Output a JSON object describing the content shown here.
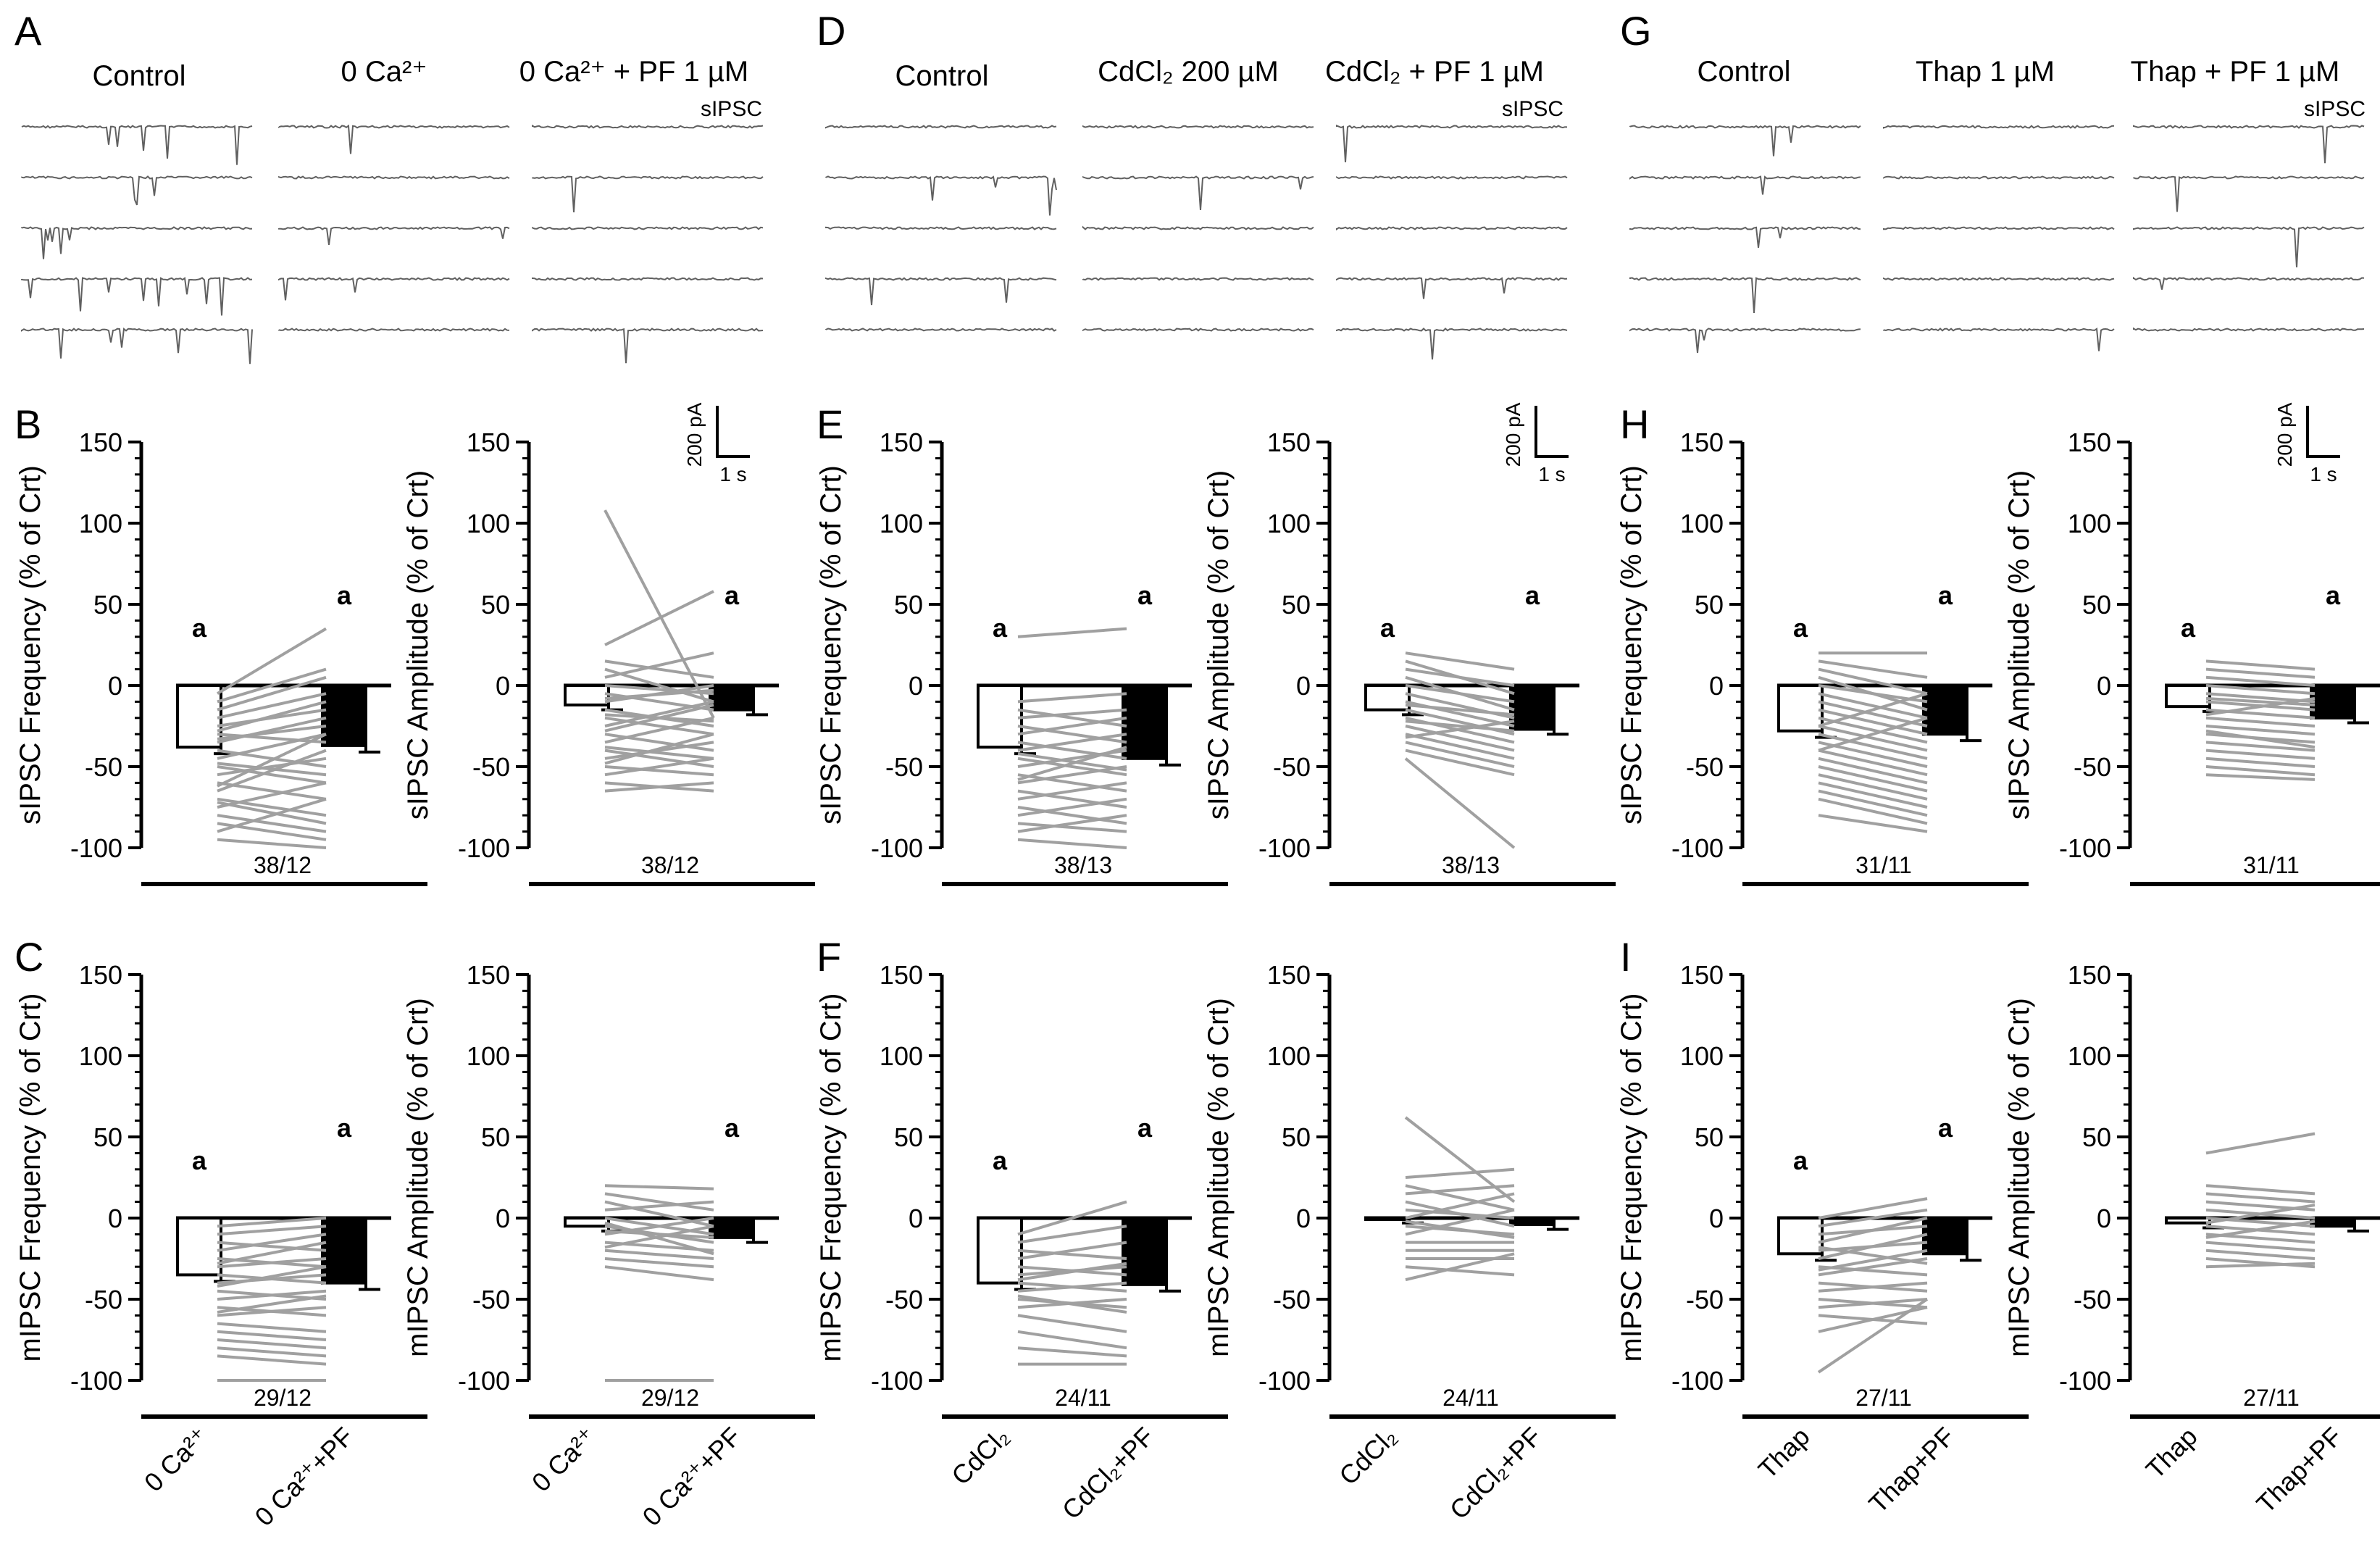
{
  "colors": {
    "axis": "#000000",
    "trace": "#606060",
    "paired_line": "#a0a0a0",
    "bar_first_fill": "#ffffff",
    "bar_second_fill": "#000000"
  },
  "panels_top": [
    {
      "letter": "A",
      "conditions": [
        "Control",
        "0 Ca²⁺",
        "0 Ca²⁺ + PF 1 µM"
      ],
      "trace_label": "sIPSC"
    },
    {
      "letter": "D",
      "conditions": [
        "Control",
        "CdCl₂ 200 µM",
        "CdCl₂ + PF 1 µM"
      ],
      "trace_label": "sIPSC"
    },
    {
      "letter": "G",
      "conditions": [
        "Control",
        "Thap 1 µM",
        "Thap + PF 1 µM"
      ],
      "trace_label": "sIPSC"
    }
  ],
  "scale_bar": {
    "amplitude_label": "200 pA",
    "time_label": "1 s"
  },
  "chart_data": [
    {
      "type": "bar",
      "panel": "B",
      "ylabel": "sIPSC Frequency (% of Crt)",
      "categories": [
        "0 Ca²⁺",
        "0 Ca²⁺+PF"
      ],
      "values": [
        -38,
        -37
      ],
      "sem": [
        4,
        4
      ],
      "significance": [
        "a",
        "a"
      ],
      "n_label": "38/12",
      "ylim": [
        -100,
        150
      ],
      "yticks": [
        -100,
        -50,
        0,
        50,
        100,
        150
      ],
      "paired": [
        [
          -5,
          35
        ],
        [
          -10,
          10
        ],
        [
          -15,
          5
        ],
        [
          -20,
          -5
        ],
        [
          -25,
          -15
        ],
        [
          -30,
          -35
        ],
        [
          -35,
          -20
        ],
        [
          -40,
          -50
        ],
        [
          -45,
          -30
        ],
        [
          -50,
          -60
        ],
        [
          -55,
          -45
        ],
        [
          -60,
          -70
        ],
        [
          -65,
          -40
        ],
        [
          -70,
          -80
        ],
        [
          -75,
          -60
        ],
        [
          -80,
          -90
        ],
        [
          -85,
          -95
        ],
        [
          -90,
          -70
        ],
        [
          -95,
          -100
        ],
        [
          -28,
          -10
        ],
        [
          -33,
          -25
        ],
        [
          -48,
          -55
        ],
        [
          -62,
          -30
        ],
        [
          -72,
          -85
        ]
      ]
    },
    {
      "type": "bar",
      "panel": "B",
      "ylabel": "sIPSC Amplitude (% of Crt)",
      "categories": [
        "0 Ca²⁺",
        "0 Ca²⁺+PF"
      ],
      "values": [
        -12,
        -15
      ],
      "sem": [
        3,
        3
      ],
      "significance": [
        "",
        "a"
      ],
      "n_label": "38/12",
      "ylim": [
        -100,
        150
      ],
      "yticks": [
        -100,
        -50,
        0,
        50,
        100,
        150
      ],
      "paired": [
        [
          108,
          -20
        ],
        [
          25,
          58
        ],
        [
          15,
          5
        ],
        [
          10,
          -10
        ],
        [
          5,
          20
        ],
        [
          0,
          -5
        ],
        [
          -5,
          -15
        ],
        [
          -10,
          0
        ],
        [
          -15,
          -25
        ],
        [
          -20,
          -30
        ],
        [
          -25,
          -10
        ],
        [
          -30,
          -40
        ],
        [
          -35,
          -20
        ],
        [
          -40,
          -50
        ],
        [
          -45,
          -35
        ],
        [
          -50,
          -55
        ],
        [
          -55,
          -45
        ],
        [
          -60,
          -65
        ],
        [
          -65,
          -60
        ],
        [
          -8,
          -3
        ],
        [
          -18,
          -22
        ],
        [
          -28,
          -12
        ],
        [
          -38,
          -45
        ],
        [
          -48,
          -30
        ]
      ]
    },
    {
      "type": "bar",
      "panel": "C",
      "ylabel": "mIPSC Frequency (% of Crt)",
      "categories": [
        "0 Ca²⁺",
        "0 Ca²⁺+PF"
      ],
      "values": [
        -35,
        -40
      ],
      "sem": [
        4,
        4
      ],
      "significance": [
        "a",
        "a"
      ],
      "n_label": "29/12",
      "ylim": [
        -100,
        150
      ],
      "yticks": [
        -100,
        -50,
        0,
        50,
        100,
        150
      ],
      "paired": [
        [
          -5,
          0
        ],
        [
          -10,
          -5
        ],
        [
          -15,
          -20
        ],
        [
          -20,
          -10
        ],
        [
          -25,
          -30
        ],
        [
          -30,
          -25
        ],
        [
          -35,
          -40
        ],
        [
          -40,
          -35
        ],
        [
          -45,
          -50
        ],
        [
          -50,
          -45
        ],
        [
          -55,
          -60
        ],
        [
          -60,
          -55
        ],
        [
          -65,
          -70
        ],
        [
          -70,
          -75
        ],
        [
          -75,
          -80
        ],
        [
          -80,
          -85
        ],
        [
          -85,
          -90
        ],
        [
          -100,
          -100
        ],
        [
          -28,
          -15
        ],
        [
          -42,
          -30
        ],
        [
          -58,
          -48
        ]
      ]
    },
    {
      "type": "bar",
      "panel": "C",
      "ylabel": "mIPSC Amplitude (% of Crt)",
      "categories": [
        "0 Ca²⁺",
        "0 Ca²⁺+PF"
      ],
      "values": [
        -5,
        -12
      ],
      "sem": [
        3,
        3
      ],
      "significance": [
        "",
        "a"
      ],
      "n_label": "29/12",
      "ylim": [
        -100,
        150
      ],
      "yticks": [
        -100,
        -50,
        0,
        50,
        100,
        150
      ],
      "paired": [
        [
          20,
          18
        ],
        [
          15,
          5
        ],
        [
          10,
          -5
        ],
        [
          5,
          10
        ],
        [
          0,
          -10
        ],
        [
          -5,
          -15
        ],
        [
          -10,
          0
        ],
        [
          -15,
          -20
        ],
        [
          -20,
          -25
        ],
        [
          -25,
          -30
        ],
        [
          -30,
          -38
        ],
        [
          -8,
          -12
        ],
        [
          -18,
          -5
        ],
        [
          -3,
          -22
        ],
        [
          -100,
          -100
        ]
      ]
    },
    {
      "type": "bar",
      "panel": "E",
      "ylabel": "sIPSC Frequency (% of Crt)",
      "categories": [
        "CdCl₂",
        "CdCl₂+PF"
      ],
      "values": [
        -38,
        -45
      ],
      "sem": [
        4,
        4
      ],
      "significance": [
        "a",
        "a"
      ],
      "n_label": "38/13",
      "ylim": [
        -100,
        150
      ],
      "yticks": [
        -100,
        -50,
        0,
        50,
        100,
        150
      ],
      "paired": [
        [
          30,
          35
        ],
        [
          -10,
          -5
        ],
        [
          -15,
          -25
        ],
        [
          -20,
          -15
        ],
        [
          -25,
          -35
        ],
        [
          -30,
          -20
        ],
        [
          -35,
          -45
        ],
        [
          -40,
          -30
        ],
        [
          -45,
          -55
        ],
        [
          -50,
          -40
        ],
        [
          -55,
          -65
        ],
        [
          -60,
          -50
        ],
        [
          -65,
          -75
        ],
        [
          -70,
          -60
        ],
        [
          -75,
          -85
        ],
        [
          -80,
          -70
        ],
        [
          -85,
          -90
        ],
        [
          -90,
          -80
        ],
        [
          -95,
          -100
        ],
        [
          -42,
          -52
        ],
        [
          -58,
          -38
        ]
      ]
    },
    {
      "type": "bar",
      "panel": "E",
      "ylabel": "sIPSC Amplitude (% of Crt)",
      "categories": [
        "CdCl₂",
        "CdCl₂+PF"
      ],
      "values": [
        -15,
        -27
      ],
      "sem": [
        3,
        3
      ],
      "significance": [
        "a",
        "a"
      ],
      "n_label": "38/13",
      "ylim": [
        -100,
        150
      ],
      "yticks": [
        -100,
        -50,
        0,
        50,
        100,
        150
      ],
      "paired": [
        [
          20,
          10
        ],
        [
          15,
          -5
        ],
        [
          10,
          0
        ],
        [
          5,
          -15
        ],
        [
          0,
          -10
        ],
        [
          -5,
          -20
        ],
        [
          -10,
          -25
        ],
        [
          -15,
          -30
        ],
        [
          -20,
          -35
        ],
        [
          -25,
          -40
        ],
        [
          -30,
          -45
        ],
        [
          -35,
          -50
        ],
        [
          -40,
          -55
        ],
        [
          -45,
          -100
        ],
        [
          -12,
          -18
        ],
        [
          -22,
          -28
        ],
        [
          -32,
          -22
        ]
      ]
    },
    {
      "type": "bar",
      "panel": "F",
      "ylabel": "mIPSC Frequency (% of Crt)",
      "categories": [
        "CdCl₂",
        "CdCl₂+PF"
      ],
      "values": [
        -40,
        -41
      ],
      "sem": [
        4,
        4
      ],
      "significance": [
        "a",
        "a"
      ],
      "n_label": "24/11",
      "ylim": [
        -100,
        150
      ],
      "yticks": [
        -100,
        -50,
        0,
        50,
        100,
        150
      ],
      "paired": [
        [
          -10,
          10
        ],
        [
          -15,
          -5
        ],
        [
          -20,
          -25
        ],
        [
          -25,
          -15
        ],
        [
          -30,
          -35
        ],
        [
          -35,
          -30
        ],
        [
          -40,
          -45
        ],
        [
          -45,
          -40
        ],
        [
          -50,
          -55
        ],
        [
          -55,
          -50
        ],
        [
          -60,
          -70
        ],
        [
          -70,
          -80
        ],
        [
          -80,
          -85
        ],
        [
          -90,
          -90
        ],
        [
          -38,
          -28
        ],
        [
          -48,
          -58
        ]
      ]
    },
    {
      "type": "bar",
      "panel": "F",
      "ylabel": "mIPSC Amplitude (% of Crt)",
      "categories": [
        "CdCl₂",
        "CdCl₂+PF"
      ],
      "values": [
        0,
        -4
      ],
      "sem": [
        3,
        3
      ],
      "significance": [
        "",
        ""
      ],
      "n_label": "24/11",
      "ylim": [
        -100,
        150
      ],
      "yticks": [
        -100,
        -50,
        0,
        50,
        100,
        150
      ],
      "paired": [
        [
          62,
          10
        ],
        [
          25,
          30
        ],
        [
          20,
          5
        ],
        [
          15,
          20
        ],
        [
          10,
          -5
        ],
        [
          5,
          0
        ],
        [
          0,
          15
        ],
        [
          -5,
          -10
        ],
        [
          -10,
          5
        ],
        [
          -15,
          -15
        ],
        [
          -20,
          -20
        ],
        [
          -25,
          -25
        ],
        [
          -30,
          -35
        ],
        [
          -38,
          -22
        ],
        [
          -2,
          -12
        ]
      ]
    },
    {
      "type": "bar",
      "panel": "H",
      "ylabel": "sIPSC Frequency (% of Crt)",
      "categories": [
        "Thap",
        "Thap+PF"
      ],
      "values": [
        -28,
        -30
      ],
      "sem": [
        4,
        4
      ],
      "significance": [
        "a",
        "a"
      ],
      "n_label": "31/11",
      "ylim": [
        -100,
        150
      ],
      "yticks": [
        -100,
        -50,
        0,
        50,
        100,
        150
      ],
      "paired": [
        [
          20,
          20
        ],
        [
          15,
          5
        ],
        [
          10,
          -5
        ],
        [
          5,
          -15
        ],
        [
          0,
          -10
        ],
        [
          -5,
          -20
        ],
        [
          -10,
          -25
        ],
        [
          -15,
          -30
        ],
        [
          -20,
          -35
        ],
        [
          -25,
          -40
        ],
        [
          -30,
          -45
        ],
        [
          -35,
          -50
        ],
        [
          -40,
          -55
        ],
        [
          -45,
          -60
        ],
        [
          -50,
          -65
        ],
        [
          -55,
          -70
        ],
        [
          -60,
          -75
        ],
        [
          -65,
          -80
        ],
        [
          -70,
          -85
        ],
        [
          -80,
          -90
        ],
        [
          -25,
          -5
        ],
        [
          -40,
          -20
        ]
      ]
    },
    {
      "type": "bar",
      "panel": "H",
      "ylabel": "sIPSC Amplitude (% of Crt)",
      "categories": [
        "Thap",
        "Thap+PF"
      ],
      "values": [
        -13,
        -20
      ],
      "sem": [
        3,
        3
      ],
      "significance": [
        "a",
        "a"
      ],
      "n_label": "31/11",
      "ylim": [
        -100,
        150
      ],
      "yticks": [
        -100,
        -50,
        0,
        50,
        100,
        150
      ],
      "paired": [
        [
          15,
          10
        ],
        [
          10,
          5
        ],
        [
          5,
          0
        ],
        [
          0,
          -5
        ],
        [
          -5,
          -10
        ],
        [
          -10,
          -15
        ],
        [
          -15,
          -20
        ],
        [
          -20,
          -25
        ],
        [
          -25,
          -30
        ],
        [
          -30,
          -35
        ],
        [
          -35,
          -40
        ],
        [
          -40,
          -45
        ],
        [
          -45,
          -50
        ],
        [
          -50,
          -55
        ],
        [
          -55,
          -58
        ],
        [
          -8,
          -12
        ],
        [
          -18,
          -8
        ],
        [
          -28,
          -38
        ]
      ]
    },
    {
      "type": "bar",
      "panel": "I",
      "ylabel": "mIPSC Frequency (% of Crt)",
      "categories": [
        "Thap",
        "Thap+PF"
      ],
      "values": [
        -22,
        -22
      ],
      "sem": [
        4,
        4
      ],
      "significance": [
        "a",
        "a"
      ],
      "n_label": "27/11",
      "ylim": [
        -100,
        150
      ],
      "yticks": [
        -100,
        -50,
        0,
        50,
        100,
        150
      ],
      "paired": [
        [
          0,
          12
        ],
        [
          -5,
          5
        ],
        [
          -10,
          -5
        ],
        [
          -15,
          0
        ],
        [
          -20,
          -15
        ],
        [
          -25,
          -10
        ],
        [
          -30,
          -35
        ],
        [
          -35,
          -25
        ],
        [
          -40,
          -45
        ],
        [
          -45,
          -40
        ],
        [
          -50,
          -55
        ],
        [
          -55,
          -50
        ],
        [
          -60,
          -65
        ],
        [
          -70,
          -55
        ],
        [
          -95,
          -50
        ],
        [
          -18,
          -28
        ],
        [
          -32,
          -20
        ]
      ]
    },
    {
      "type": "bar",
      "panel": "I",
      "ylabel": "mIPSC Amplitude (% of Crt)",
      "categories": [
        "Thap",
        "Thap+PF"
      ],
      "values": [
        -3,
        -5
      ],
      "sem": [
        3,
        3
      ],
      "significance": [
        "",
        ""
      ],
      "n_label": "27/11",
      "ylim": [
        -100,
        150
      ],
      "yticks": [
        -100,
        -50,
        0,
        50,
        100,
        150
      ],
      "paired": [
        [
          40,
          52
        ],
        [
          20,
          15
        ],
        [
          15,
          10
        ],
        [
          10,
          5
        ],
        [
          5,
          0
        ],
        [
          0,
          -5
        ],
        [
          -5,
          -10
        ],
        [
          -10,
          -15
        ],
        [
          -15,
          -20
        ],
        [
          -20,
          -25
        ],
        [
          -25,
          -30
        ],
        [
          -30,
          -28
        ],
        [
          -3,
          8
        ],
        [
          -12,
          -2
        ]
      ]
    }
  ]
}
